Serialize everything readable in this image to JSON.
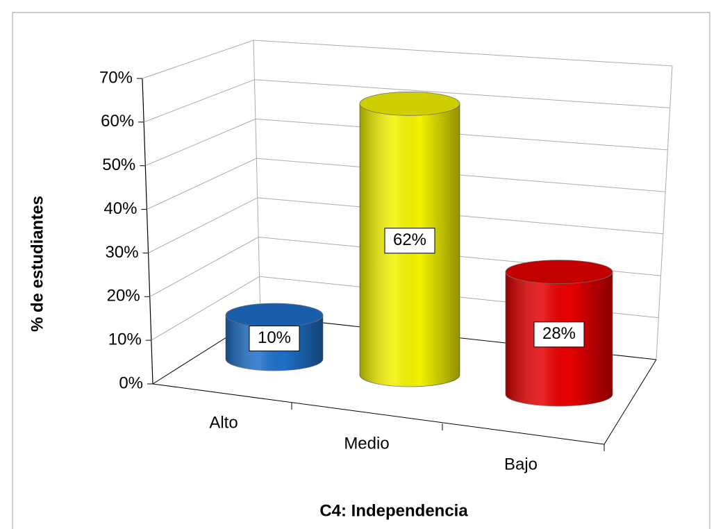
{
  "chart_data": {
    "type": "bar3d",
    "x_label": "C4: Independencia",
    "y_label": "%  de estudiantes",
    "categories": [
      "Alto",
      "Medio",
      "Bajo"
    ],
    "values": [
      10,
      62,
      28
    ],
    "value_labels": [
      "10%",
      "62%",
      "28%"
    ],
    "colors": [
      "#1e6fc8",
      "#f2f200",
      "#e60000"
    ],
    "ylim": [
      0,
      70
    ],
    "yticks": [
      {
        "value": 0,
        "label": "0%"
      },
      {
        "value": 10,
        "label": "10%"
      },
      {
        "value": 20,
        "label": "20%"
      },
      {
        "value": 30,
        "label": "30%"
      },
      {
        "value": 40,
        "label": "40%"
      },
      {
        "value": 50,
        "label": "50%"
      },
      {
        "value": 60,
        "label": "60%"
      },
      {
        "value": 70,
        "label": "70%"
      }
    ],
    "grid": true
  }
}
